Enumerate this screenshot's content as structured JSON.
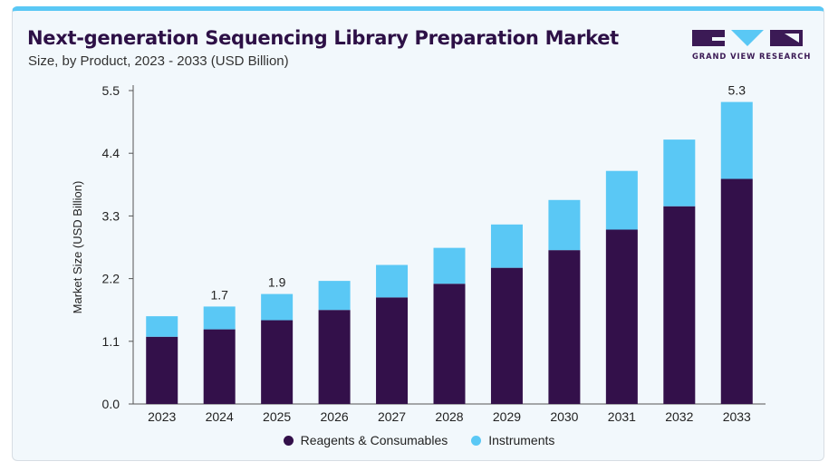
{
  "header": {
    "title": "Next-generation Sequencing Library Preparation Market",
    "subtitle": "Size, by Product, 2023 - 2033 (USD Billion)"
  },
  "brand": {
    "name": "GRAND VIEW RESEARCH",
    "colors": {
      "dark": "#3b1a55",
      "accent": "#5ac8f5"
    }
  },
  "colors": {
    "reagents": "#33104a",
    "instruments": "#5ac8f5",
    "card_border_top": "#5ac8f5"
  },
  "chart_data": {
    "type": "bar",
    "stacked": true,
    "categories": [
      "2023",
      "2024",
      "2025",
      "2026",
      "2027",
      "2028",
      "2029",
      "2030",
      "2031",
      "2032",
      "2033"
    ],
    "series": [
      {
        "name": "Reagents & Consumables",
        "values": [
          1.18,
          1.31,
          1.47,
          1.65,
          1.87,
          2.11,
          2.39,
          2.7,
          3.06,
          3.47,
          3.95
        ]
      },
      {
        "name": "Instruments",
        "values": [
          0.36,
          0.4,
          0.46,
          0.51,
          0.57,
          0.63,
          0.76,
          0.88,
          1.03,
          1.17,
          1.35
        ]
      }
    ],
    "data_labels": [
      {
        "category": "2024",
        "text": "1.7"
      },
      {
        "category": "2025",
        "text": "1.9"
      },
      {
        "category": "2033",
        "text": "5.3"
      }
    ],
    "ylabel": "Market Size (USD Billion)",
    "xlabel": "",
    "yticks": [
      "0.0",
      "1.1",
      "2.2",
      "3.3",
      "4.4",
      "5.5"
    ],
    "ylim": [
      0,
      5.5
    ],
    "grid": false,
    "legend_position": "bottom"
  }
}
